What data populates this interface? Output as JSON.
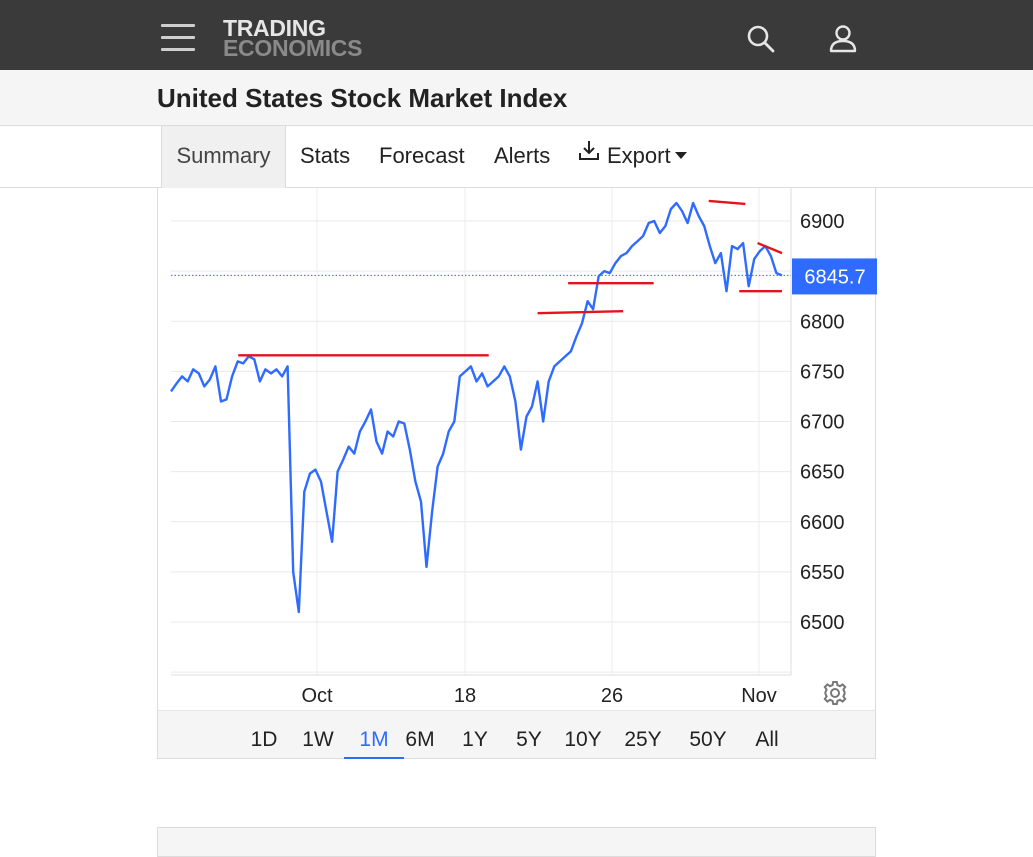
{
  "header": {
    "logo_line1": "TRADING",
    "logo_line2": "ECONOMICS",
    "menu_icon": "hamburger-menu-icon",
    "search_icon": "search-icon",
    "user_icon": "user-icon"
  },
  "page": {
    "title": "United States Stock Market Index"
  },
  "tabs": [
    {
      "label": "Summary",
      "active": true
    },
    {
      "label": "Stats"
    },
    {
      "label": "Forecast"
    },
    {
      "label": "Alerts"
    },
    {
      "label": "Export",
      "icon": "download-icon",
      "dropdown": true
    }
  ],
  "chart_data": {
    "type": "line",
    "series": [],
    "x_tick_labels": [
      "Oct",
      "18",
      "26",
      "Nov"
    ],
    "y_ticks": [
      6500,
      6550,
      6600,
      6650,
      6700,
      6750,
      6800,
      6900
    ],
    "ylim": [
      6450,
      6920
    ],
    "current_value": 6845.7,
    "current_value_label": "6845.7",
    "values": [
      6730,
      6738,
      6745,
      6740,
      6752,
      6748,
      6735,
      6742,
      6755,
      6720,
      6722,
      6745,
      6760,
      6758,
      6765,
      6762,
      6740,
      6752,
      6748,
      6752,
      6745,
      6755,
      6550,
      6510,
      6630,
      6648,
      6652,
      6640,
      6610,
      6580,
      6650,
      6662,
      6675,
      6668,
      6690,
      6700,
      6712,
      6680,
      6668,
      6690,
      6685,
      6700,
      6698,
      6672,
      6640,
      6620,
      6555,
      6610,
      6655,
      6668,
      6690,
      6700,
      6745,
      6750,
      6755,
      6740,
      6748,
      6735,
      6740,
      6745,
      6755,
      6745,
      6720,
      6672,
      6705,
      6715,
      6740,
      6700,
      6740,
      6755,
      6760,
      6765,
      6770,
      6785,
      6798,
      6820,
      6812,
      6845,
      6850,
      6848,
      6858,
      6865,
      6868,
      6875,
      6880,
      6885,
      6898,
      6900,
      6888,
      6895,
      6912,
      6918,
      6910,
      6898,
      6918,
      6905,
      6895,
      6875,
      6858,
      6868,
      6830,
      6875,
      6872,
      6878,
      6835,
      6862,
      6870,
      6875,
      6865,
      6848,
      6845.7
    ],
    "annotations": {
      "color": "#e3141b",
      "lines": [
        {
          "x1": 0.11,
          "y1": 6766,
          "x2": 0.52,
          "y2": 6766
        },
        {
          "x1": 0.6,
          "y1": 6808,
          "x2": 0.74,
          "y2": 6810
        },
        {
          "x1": 0.65,
          "y1": 6838,
          "x2": 0.79,
          "y2": 6838
        },
        {
          "x1": 0.88,
          "y1": 6920,
          "x2": 0.94,
          "y2": 6917
        },
        {
          "x1": 0.96,
          "y1": 6878,
          "x2": 1.0,
          "y2": 6868
        },
        {
          "x1": 0.93,
          "y1": 6830,
          "x2": 1.0,
          "y2": 6830
        }
      ]
    },
    "line_color": "#2f6bff",
    "grid": true
  },
  "range_buttons": [
    "1D",
    "1W",
    "1M",
    "6M",
    "1Y",
    "5Y",
    "10Y",
    "25Y",
    "50Y",
    "All"
  ],
  "range_active": "1M",
  "settings_icon": "gear-icon"
}
